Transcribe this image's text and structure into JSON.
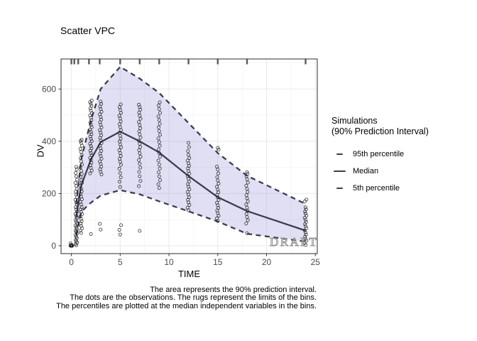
{
  "title": "Scatter VPC",
  "watermark": "DRAFT",
  "legend": {
    "title_line1": "Simulations",
    "title_line2": "(90% Prediction Interval)",
    "items": [
      {
        "label": "95th percentile",
        "linetype": "dashed"
      },
      {
        "label": "Median",
        "linetype": "solid"
      },
      {
        "label": "5th percentile",
        "linetype": "dashed"
      }
    ]
  },
  "caption": {
    "lines": [
      "The area represents the 90% prediction interval.",
      "The dots are the observations. The rugs represent the limits of the bins.",
      "The percentiles are plotted at the median independent variables in the bins."
    ]
  },
  "colors": {
    "background": "#ffffff",
    "panel_border": "#2e2e2e",
    "grid_major": "#e9e9e9",
    "grid_minor": "#f4f4f4",
    "line": "#3d3d50",
    "ribbon_fill": "#928bd3",
    "ribbon_opacity": 0.28,
    "point": "#1c1c1c",
    "rug": "#3f3f3f",
    "axis_text": "#4a4a4a",
    "tick": "#333333"
  },
  "chart_data": {
    "type": "line",
    "title": "Scatter VPC",
    "xlabel": "TIME",
    "ylabel": "DV",
    "xlim": [
      -1.06,
      25.2
    ],
    "ylim": [
      -30,
      715
    ],
    "xticks": [
      0,
      5,
      10,
      15,
      20,
      25
    ],
    "yticks": [
      0,
      200,
      400,
      600
    ],
    "xticks_minor": [
      2.5,
      7.5,
      12.5,
      17.5,
      22.5
    ],
    "yticks_minor": [
      100,
      300,
      500,
      700
    ],
    "grid": "major+minor",
    "legend_position": "right",
    "rug_x": [
      0,
      0.3,
      0.7,
      1.8,
      2.9,
      5,
      7,
      9,
      12,
      15,
      18,
      24
    ],
    "series": [
      {
        "name": "95th percentile",
        "style": "dashed",
        "x": [
          0.5,
          1,
          2,
          3,
          5,
          7,
          9,
          12,
          15,
          18,
          24
        ],
        "y": [
          160,
          330,
          480,
          600,
          685,
          640,
          585,
          470,
          355,
          268,
          160
        ]
      },
      {
        "name": "Median",
        "style": "solid",
        "x": [
          0.5,
          1,
          2,
          3,
          5,
          7,
          9,
          12,
          15,
          18,
          24
        ],
        "y": [
          110,
          230,
          330,
          397,
          437,
          400,
          357,
          267,
          186,
          133,
          58
        ]
      },
      {
        "name": "5th percentile",
        "style": "dashed",
        "x": [
          0.5,
          1,
          2,
          3,
          5,
          7,
          9,
          12,
          15,
          18,
          24
        ],
        "y": [
          40,
          130,
          165,
          192,
          213,
          197,
          170,
          132,
          93,
          46,
          16
        ]
      }
    ],
    "ribbon": {
      "upper": "95th percentile",
      "lower": "5th percentile"
    },
    "observations": [
      {
        "t": 0,
        "dv": [
          0,
          0,
          0,
          0,
          0,
          0,
          4,
          9
        ]
      },
      {
        "t": 0.5,
        "dv": [
          2,
          7,
          12,
          17,
          23,
          29,
          35,
          41,
          47,
          53,
          59,
          65,
          71,
          78,
          85,
          92,
          99,
          106,
          114,
          122,
          130,
          139,
          148,
          157,
          166,
          176,
          186,
          196,
          207,
          218,
          229,
          241,
          253,
          266,
          279,
          292,
          302
        ]
      },
      {
        "t": 1,
        "dv": [
          49,
          58,
          67,
          76,
          85,
          94,
          103,
          112,
          121,
          130,
          139,
          148,
          158,
          168,
          178,
          188,
          198,
          208,
          219,
          230,
          241,
          252,
          263,
          275,
          287,
          299,
          311,
          323,
          335,
          347,
          359,
          371,
          383,
          394,
          401,
          406
        ]
      },
      {
        "t": 2,
        "dv": [
          45,
          277,
          288,
          298,
          308,
          318,
          328,
          337,
          346,
          355,
          364,
          373,
          382,
          391,
          400,
          409,
          418,
          427,
          436,
          445,
          454,
          463,
          472,
          481,
          490,
          499,
          508,
          517,
          526,
          535,
          543,
          550,
          556
        ]
      },
      {
        "t": 3,
        "dv": [
          62,
          84,
          273,
          283,
          293,
          303,
          313,
          323,
          333,
          343,
          353,
          363,
          373,
          383,
          393,
          403,
          413,
          423,
          433,
          443,
          453,
          463,
          473,
          483,
          493,
          503,
          513,
          523,
          533,
          543,
          552
        ]
      },
      {
        "t": 5,
        "dv": [
          43,
          61,
          79,
          225,
          245,
          262,
          278,
          295,
          310,
          322,
          333,
          344,
          355,
          366,
          377,
          388,
          399,
          410,
          421,
          432,
          443,
          454,
          465,
          476,
          487,
          498,
          509,
          520,
          531,
          541
        ]
      },
      {
        "t": 7,
        "dv": [
          57,
          228,
          248,
          266,
          283,
          299,
          314,
          328,
          341,
          354,
          366,
          378,
          390,
          402,
          414,
          426,
          438,
          450,
          462,
          474,
          486,
          498,
          510,
          521,
          531,
          540
        ]
      },
      {
        "t": 9,
        "dv": [
          221,
          236,
          251,
          266,
          281,
          296,
          311,
          326,
          341,
          355,
          369,
          383,
          397,
          411,
          425,
          439,
          453,
          467,
          481,
          495,
          509,
          523,
          537,
          549
        ]
      },
      {
        "t": 12,
        "dv": [
          136,
          146,
          156,
          166,
          176,
          186,
          196,
          206,
          216,
          226,
          236,
          246,
          256,
          266,
          276,
          286,
          296,
          306,
          316,
          326,
          336,
          348,
          362,
          378,
          394
        ]
      },
      {
        "t": 15,
        "dv": [
          95,
          105,
          115,
          125,
          135,
          145,
          155,
          165,
          175,
          185,
          195,
          205,
          215,
          226,
          238,
          250,
          263,
          277,
          292,
          303,
          368,
          375
        ]
      },
      {
        "t": 18,
        "dv": [
          48,
          85,
          98,
          110,
          122,
          134,
          146,
          158,
          170,
          182,
          194,
          206,
          218,
          230,
          242,
          254,
          266,
          275,
          282
        ]
      },
      {
        "t": 24,
        "dv": [
          3,
          11,
          19,
          27,
          35,
          43,
          51,
          59,
          67,
          75,
          83,
          91,
          99,
          107,
          115,
          123,
          131,
          139,
          147,
          170,
          177
        ]
      }
    ]
  }
}
